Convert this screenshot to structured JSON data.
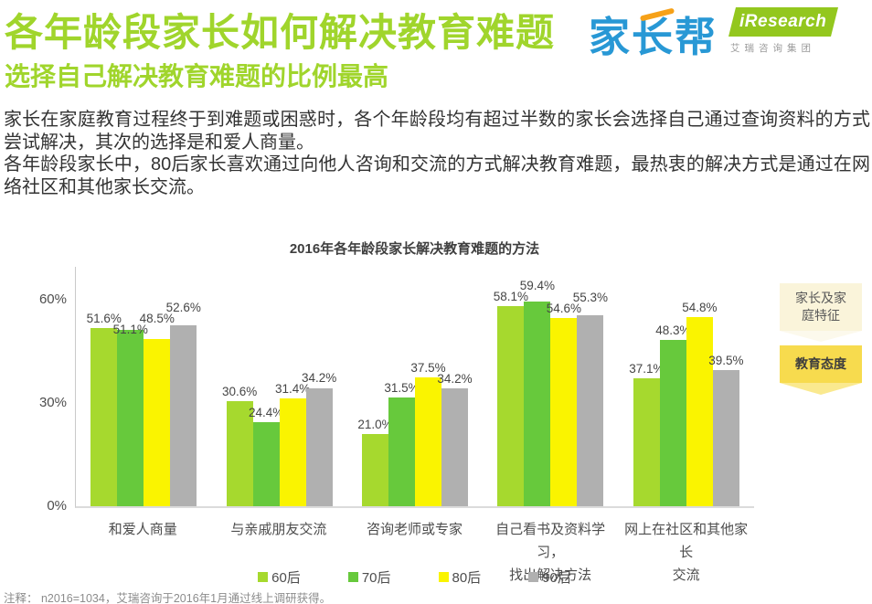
{
  "header": {
    "title": "各年龄段家长如何解决教育难题",
    "subtitle": "选择自己解决教育难题的比例最高",
    "logo_jzb": "家长帮",
    "logo_iresearch": "iResearch",
    "logo_iresearch_sub": "艾瑞咨询集团"
  },
  "intro": {
    "p1": "家长在家庭教育过程终于到难题或困惑时，各个年龄段均有超过半数的家长会选择自己通过查询资料的方式尝试解决，其次的选择是和爱人商量。",
    "p2": "各年龄段家长中，80后家长喜欢通过向他人咨询和交流的方式解决教育难题，最热衷的解决方式是通过在网络社区和其他家长交流。"
  },
  "chart_data": {
    "type": "bar",
    "title": "2016年各年龄段家长解决教育难题的方法",
    "categories": [
      "和爱人商量",
      "与亲戚朋友交流",
      "咨询老师或专家",
      "自己看书及资料学习，\n找出解决方法",
      "网上在社区和其他家长\n交流"
    ],
    "series": [
      {
        "name": "60后",
        "color": "#A6D92E",
        "values": [
          51.6,
          30.6,
          21.0,
          58.1,
          37.1
        ]
      },
      {
        "name": "70后",
        "color": "#67C93C",
        "values": [
          51.1,
          24.4,
          31.5,
          59.4,
          48.3
        ]
      },
      {
        "name": "80后",
        "color": "#FAF400",
        "values": [
          48.5,
          31.4,
          37.5,
          54.6,
          54.8
        ]
      },
      {
        "name": "90后",
        "color": "#B0B0B0",
        "values": [
          52.6,
          34.2,
          34.2,
          55.3,
          39.5
        ]
      }
    ],
    "yticks": [
      {
        "label": "0%",
        "value": 0
      },
      {
        "label": "30%",
        "value": 30
      },
      {
        "label": "60%",
        "value": 60
      }
    ],
    "ylim": [
      0,
      70
    ],
    "xlabel": "",
    "ylabel": "",
    "grid": false,
    "legend_position": "bottom",
    "label_suffix": "%"
  },
  "side_tabs": [
    {
      "label": "家长及家庭特征",
      "active": false
    },
    {
      "label": "教育态度",
      "active": true
    }
  ],
  "footnote": "注释： n2016=1034，艾瑞咨询于2016年1月通过线上调研获得。"
}
